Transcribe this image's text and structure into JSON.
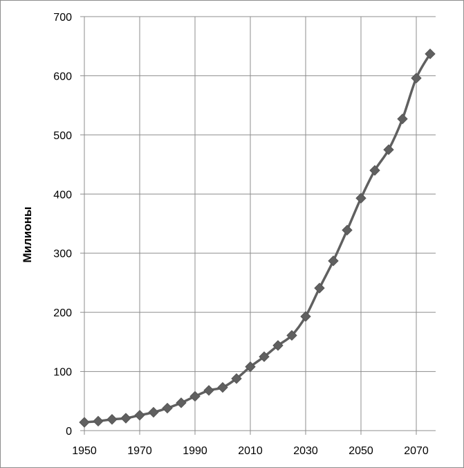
{
  "chart_data": {
    "type": "line",
    "title": "",
    "xlabel": "",
    "ylabel": "Милионы",
    "xlim": [
      1950,
      2075
    ],
    "ylim": [
      0,
      700
    ],
    "x_ticks": [
      1950,
      1970,
      1990,
      2010,
      2030,
      2050,
      2070
    ],
    "y_ticks": [
      0,
      100,
      200,
      300,
      400,
      500,
      600,
      700
    ],
    "grid": true,
    "legend": "none",
    "marker": "diamond",
    "series": [
      {
        "color": "#606060",
        "x": [
          1950,
          1955,
          1960,
          1965,
          1970,
          1975,
          1980,
          1985,
          1990,
          1995,
          2000,
          2005,
          2010,
          2015,
          2020,
          2025,
          2030,
          2035,
          2040,
          2045,
          2050,
          2055,
          2060,
          2065,
          2070,
          2075
        ],
        "values": [
          14,
          16,
          19,
          21,
          26,
          31,
          38,
          47,
          58,
          68,
          73,
          88,
          108,
          125,
          144,
          161,
          193,
          241,
          287,
          339,
          393,
          440,
          475,
          527,
          596,
          637
        ]
      }
    ]
  }
}
